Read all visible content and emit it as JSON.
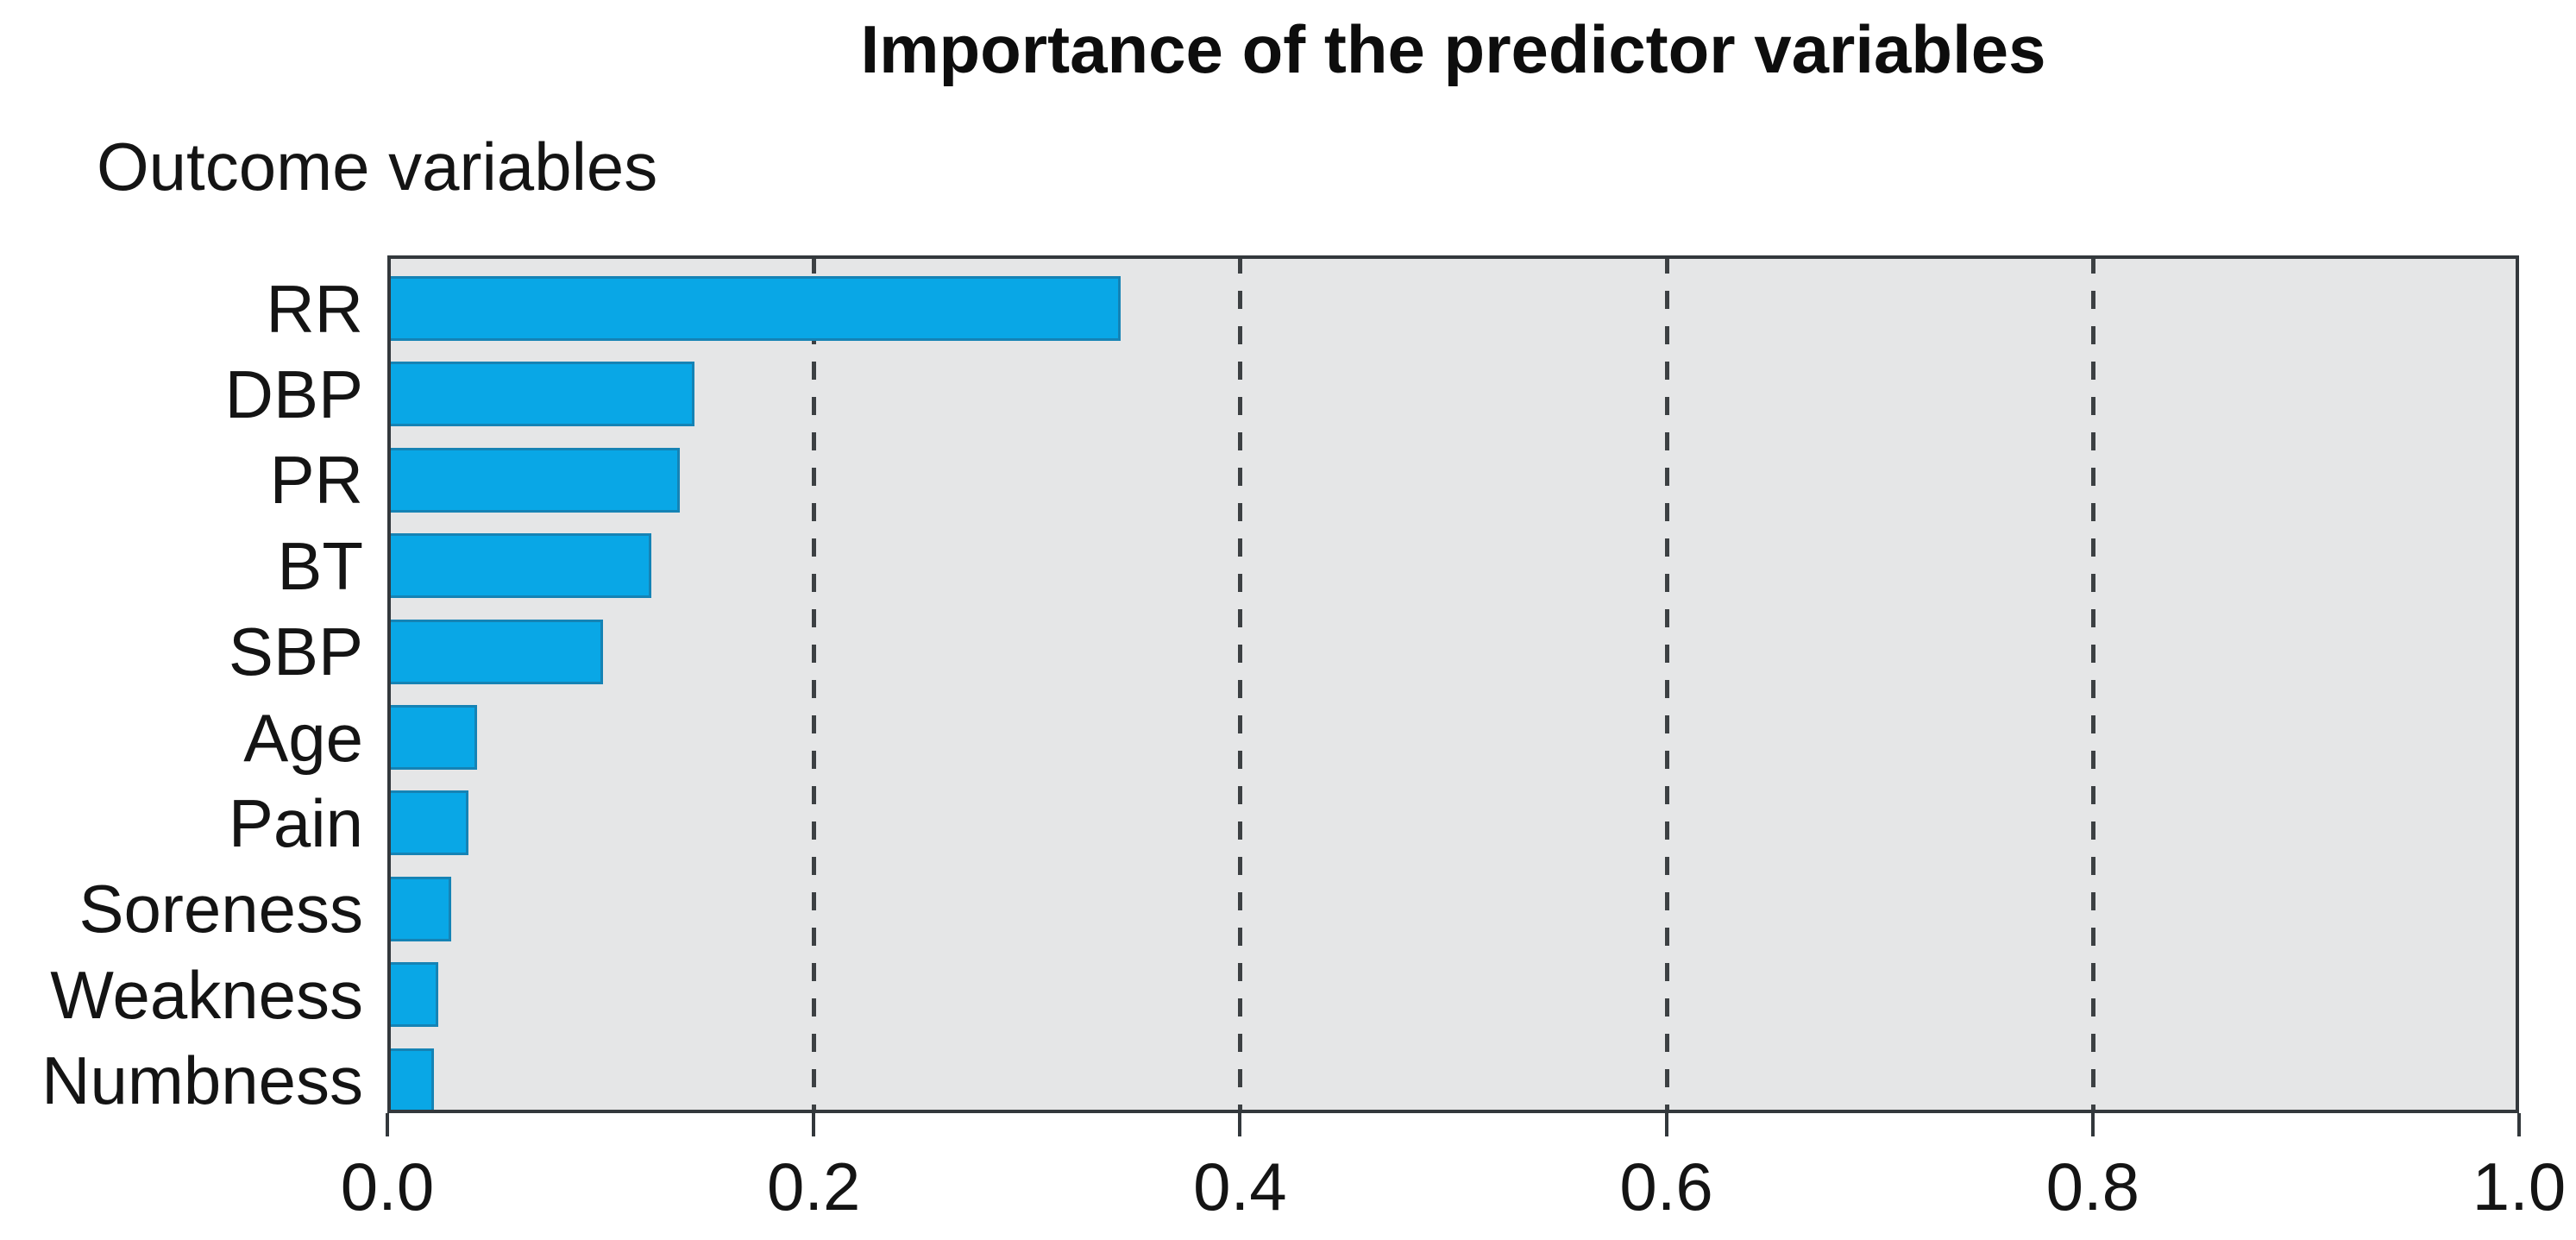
{
  "chart_data": {
    "type": "bar",
    "orientation": "horizontal",
    "title": "Importance of the predictor variables",
    "ylabel": "Outcome variables",
    "xlabel": "",
    "categories": [
      "RR",
      "DBP",
      "PR",
      "BT",
      "SBP",
      "Age",
      "Pain",
      "Soreness",
      "Weakness",
      "Numbness"
    ],
    "values": [
      0.344,
      0.144,
      0.137,
      0.124,
      0.101,
      0.042,
      0.038,
      0.03,
      0.024,
      0.022
    ],
    "xlim": [
      0.0,
      1.0
    ],
    "x_ticks": [
      0.0,
      0.2,
      0.4,
      0.6,
      0.8,
      1.0
    ],
    "x_tick_labels": [
      "0.0",
      "0.2",
      "0.4",
      "0.6",
      "0.8",
      "1.0"
    ],
    "gridlines_at": [
      0.2,
      0.4,
      0.6,
      0.8
    ],
    "grid_style": "vertical dashed",
    "legend": "none",
    "colors": {
      "bar_fill": "#09a7e6",
      "bar_border": "#1583b5",
      "plot_background": "#e5e6e7",
      "frame": "#33383c",
      "grid": "#3c4043",
      "text": "#141414",
      "figure_background": "#ffffff"
    }
  }
}
